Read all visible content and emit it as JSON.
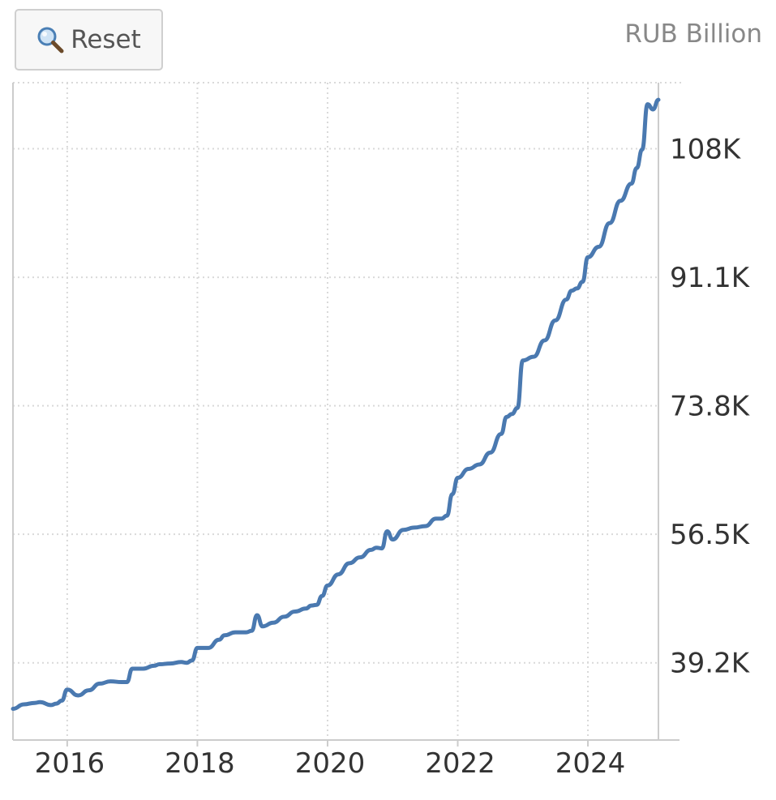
{
  "toolbar": {
    "reset_label": "Reset",
    "reset_icon": "magnifier-icon"
  },
  "unit_label": "RUB Billion",
  "colors": {
    "line": "#4a79b0",
    "grid": "#d9d9d9",
    "axis": "#cccccc"
  },
  "chart_data": {
    "type": "line",
    "title": "",
    "xlabel": "",
    "ylabel": "RUB Billion",
    "x_ticks": [
      "2016",
      "2018",
      "2020",
      "2022",
      "2024"
    ],
    "y_ticks": [
      "39.2K",
      "56.5K",
      "73.8K",
      "91.1K",
      "108K"
    ],
    "y_tick_values": [
      39200,
      56500,
      73800,
      91100,
      108400
    ],
    "ylim": [
      28800,
      117300
    ],
    "xlim": [
      "2015-03",
      "2025-02"
    ],
    "grid": true,
    "y_axis_side": "right",
    "series": [
      {
        "name": "",
        "x": [
          "2015-03",
          "2015-05",
          "2015-07",
          "2015-08",
          "2015-10",
          "2015-11",
          "2015-12",
          "2016-01",
          "2016-03",
          "2016-05",
          "2016-07",
          "2016-09",
          "2016-11",
          "2016-12",
          "2017-01",
          "2017-03",
          "2017-05",
          "2017-06",
          "2017-08",
          "2017-10",
          "2017-11",
          "2017-12",
          "2018-01",
          "2018-03",
          "2018-05",
          "2018-06",
          "2018-08",
          "2018-10",
          "2018-11",
          "2018-12",
          "2019-01",
          "2019-03",
          "2019-05",
          "2019-07",
          "2019-09",
          "2019-10",
          "2019-11",
          "2019-12",
          "2020-01",
          "2020-03",
          "2020-05",
          "2020-07",
          "2020-09",
          "2020-10",
          "2020-11",
          "2020-12",
          "2021-01",
          "2021-03",
          "2021-05",
          "2021-07",
          "2021-09",
          "2021-10",
          "2021-11",
          "2021-12",
          "2022-01",
          "2022-03",
          "2022-05",
          "2022-07",
          "2022-09",
          "2022-10",
          "2022-11",
          "2022-12",
          "2023-01",
          "2023-03",
          "2023-05",
          "2023-07",
          "2023-09",
          "2023-10",
          "2023-11",
          "2023-12",
          "2024-01",
          "2024-03",
          "2024-05",
          "2024-07",
          "2024-09",
          "2024-10",
          "2024-11",
          "2024-12",
          "2025-01",
          "2025-02"
        ],
        "y": [
          33000,
          33600,
          33800,
          33900,
          33500,
          33700,
          34100,
          35600,
          34800,
          35500,
          36400,
          36700,
          36600,
          36600,
          38400,
          38400,
          38800,
          39000,
          39100,
          39300,
          39200,
          39500,
          41200,
          41200,
          42300,
          42900,
          43300,
          43300,
          43500,
          45600,
          44100,
          44600,
          45400,
          46100,
          46500,
          46900,
          47000,
          48200,
          49600,
          51100,
          52600,
          53400,
          54400,
          54700,
          54600,
          56900,
          55800,
          57100,
          57400,
          57600,
          58600,
          58600,
          59000,
          61900,
          64100,
          65300,
          65900,
          67500,
          70000,
          72300,
          72700,
          73500,
          79900,
          80400,
          82600,
          85300,
          88100,
          89300,
          89600,
          90500,
          93800,
          95200,
          98400,
          101400,
          103700,
          105800,
          108300,
          114400,
          113700,
          115000
        ]
      }
    ]
  }
}
